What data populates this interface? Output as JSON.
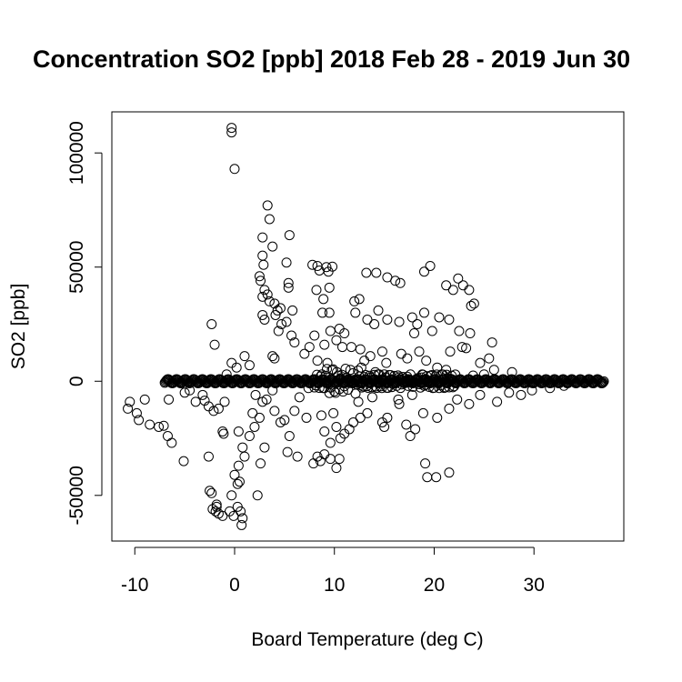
{
  "chart_data": {
    "type": "scatter",
    "title": "Concentration SO2 [ppb] 2018 Feb 28 - 2019 Jun 30",
    "xlabel": "Board Temperature (deg C)",
    "ylabel": "SO2 [ppb]",
    "xlim": [
      -12.3,
      39
    ],
    "ylim": [
      -70000,
      118000
    ],
    "xticks": [
      -10,
      0,
      10,
      20,
      30
    ],
    "yticks": [
      -50000,
      0,
      50000,
      100000
    ],
    "xtick_labels": [
      "-10",
      "0",
      "10",
      "20",
      "30"
    ],
    "ytick_labels": [
      "-50000",
      "0",
      "50000",
      "100000"
    ],
    "grid": false,
    "marker": "open-circle",
    "band": {
      "x_start": -7,
      "x_end": 37,
      "y": 0
    },
    "points": [
      [
        -0.3,
        111000
      ],
      [
        -0.3,
        109000
      ],
      [
        0,
        93000
      ],
      [
        3.3,
        77000
      ],
      [
        3.5,
        71000
      ],
      [
        2.8,
        63000
      ],
      [
        5.5,
        64000
      ],
      [
        3.8,
        59000
      ],
      [
        2.8,
        55000
      ],
      [
        2.9,
        51000
      ],
      [
        5.2,
        52000
      ],
      [
        7.8,
        51000
      ],
      [
        8.3,
        50500
      ],
      [
        9.2,
        50000
      ],
      [
        9.8,
        50200
      ],
      [
        8.5,
        48500
      ],
      [
        9.4,
        48000
      ],
      [
        13.2,
        47500
      ],
      [
        14.2,
        47500
      ],
      [
        15.3,
        45500
      ],
      [
        16.1,
        44000
      ],
      [
        16.6,
        43000
      ],
      [
        19.0,
        48000
      ],
      [
        19.6,
        50500
      ],
      [
        22.4,
        45000
      ],
      [
        22.9,
        42000
      ],
      [
        21.2,
        42000
      ],
      [
        23.5,
        40000
      ],
      [
        21.9,
        40000
      ],
      [
        24.0,
        34000
      ],
      [
        23.7,
        33000
      ],
      [
        2.5,
        46000
      ],
      [
        2.6,
        44000
      ],
      [
        3.0,
        40000
      ],
      [
        3.3,
        38000
      ],
      [
        2.8,
        37000
      ],
      [
        3.5,
        35000
      ],
      [
        4.0,
        34000
      ],
      [
        4.3,
        31000
      ],
      [
        4.6,
        32000
      ],
      [
        4.1,
        29000
      ],
      [
        2.8,
        29000
      ],
      [
        3.0,
        27000
      ],
      [
        5.8,
        31000
      ],
      [
        5.4,
        43000
      ],
      [
        5.4,
        41000
      ],
      [
        4.7,
        25000
      ],
      [
        5.2,
        26000
      ],
      [
        4.4,
        22000
      ],
      [
        5.7,
        20000
      ],
      [
        6.0,
        17000
      ],
      [
        3.8,
        11000
      ],
      [
        4.0,
        10000
      ],
      [
        8.2,
        40000
      ],
      [
        8.9,
        36000
      ],
      [
        9.5,
        41000
      ],
      [
        8.8,
        30000
      ],
      [
        9.5,
        30000
      ],
      [
        12.0,
        35000
      ],
      [
        12.5,
        36000
      ],
      [
        12.1,
        30000
      ],
      [
        13.3,
        27000
      ],
      [
        14.4,
        31000
      ],
      [
        14.0,
        25000
      ],
      [
        15.3,
        27000
      ],
      [
        16.5,
        26000
      ],
      [
        17.8,
        28000
      ],
      [
        18.3,
        25000
      ],
      [
        19.0,
        30000
      ],
      [
        20.5,
        28000
      ],
      [
        21.5,
        27000
      ],
      [
        22.5,
        22000
      ],
      [
        23.6,
        21000
      ],
      [
        19.8,
        22000
      ],
      [
        18.0,
        21000
      ],
      [
        10.5,
        23000
      ],
      [
        11.0,
        21000
      ],
      [
        9.6,
        22000
      ],
      [
        10.2,
        18000
      ],
      [
        9.0,
        16000
      ],
      [
        10.8,
        15000
      ],
      [
        11.7,
        15000
      ],
      [
        12.6,
        14000
      ],
      [
        8.0,
        20000
      ],
      [
        7.5,
        15000
      ],
      [
        7.0,
        12000
      ],
      [
        8.3,
        9000
      ],
      [
        9.3,
        8000
      ],
      [
        13.0,
        9000
      ],
      [
        13.6,
        11000
      ],
      [
        14.8,
        13000
      ],
      [
        15.2,
        8000
      ],
      [
        16.7,
        12000
      ],
      [
        17.3,
        10000
      ],
      [
        18.5,
        13000
      ],
      [
        19.2,
        9000
      ],
      [
        20.3,
        6000
      ],
      [
        21.6,
        13000
      ],
      [
        22.8,
        15000
      ],
      [
        23.2,
        14500
      ],
      [
        25.8,
        17000
      ],
      [
        25.5,
        10000
      ],
      [
        24.6,
        8000
      ],
      [
        26.0,
        5000
      ],
      [
        27.8,
        4000
      ],
      [
        25.0,
        3000
      ],
      [
        -0.3,
        8000
      ],
      [
        0.2,
        6000
      ],
      [
        -0.8,
        3000
      ],
      [
        -2.3,
        25000
      ],
      [
        -2.0,
        16000
      ],
      [
        1.0,
        11000
      ],
      [
        1.5,
        7000
      ],
      [
        -10.5,
        -9000
      ],
      [
        -10.7,
        -12000
      ],
      [
        -9.8,
        -14000
      ],
      [
        -9.6,
        -17000
      ],
      [
        -9.0,
        -8000
      ],
      [
        -8.5,
        -19000
      ],
      [
        -7.6,
        -20000
      ],
      [
        -7.1,
        -19500
      ],
      [
        -6.7,
        -24000
      ],
      [
        -6.3,
        -27000
      ],
      [
        -6.6,
        -8000
      ],
      [
        -5.1,
        -35000
      ],
      [
        -5.0,
        -5000
      ],
      [
        -3.9,
        -9000
      ],
      [
        -3.2,
        -6000
      ],
      [
        -2.6,
        -11000
      ],
      [
        -2.1,
        -13000
      ],
      [
        -1.6,
        -12000
      ],
      [
        -1.0,
        -9000
      ],
      [
        -1.2,
        -22000
      ],
      [
        -1.1,
        -23000
      ],
      [
        -2.6,
        -33000
      ],
      [
        -2.5,
        -48000
      ],
      [
        -2.3,
        -49000
      ],
      [
        -1.8,
        -54000
      ],
      [
        -2.2,
        -56000
      ],
      [
        -1.9,
        -57000
      ],
      [
        -1.6,
        -58000
      ],
      [
        -1.8,
        -55000
      ],
      [
        -1.2,
        -59000
      ],
      [
        -0.5,
        -57000
      ],
      [
        -0.1,
        -59000
      ],
      [
        0.3,
        -55000
      ],
      [
        0.6,
        -57000
      ],
      [
        0.8,
        -60000
      ],
      [
        0.7,
        -63000
      ],
      [
        -0.3,
        -50000
      ],
      [
        0.3,
        -45000
      ],
      [
        0.5,
        -44000
      ],
      [
        0.0,
        -41000
      ],
      [
        0.4,
        -37000
      ],
      [
        1.0,
        -33000
      ],
      [
        0.8,
        -29000
      ],
      [
        1.5,
        -24000
      ],
      [
        0.4,
        -22000
      ],
      [
        2.0,
        -20000
      ],
      [
        2.5,
        -16000
      ],
      [
        1.8,
        -14000
      ],
      [
        2.3,
        -50000
      ],
      [
        2.6,
        -36000
      ],
      [
        3.0,
        -29000
      ],
      [
        4.0,
        -13000
      ],
      [
        5.0,
        -17000
      ],
      [
        5.5,
        -24000
      ],
      [
        5.3,
        -31000
      ],
      [
        6.3,
        -33000
      ],
      [
        4.6,
        -18000
      ],
      [
        6.0,
        -13000
      ],
      [
        7.2,
        -16000
      ],
      [
        7.9,
        -36000
      ],
      [
        8.3,
        -33000
      ],
      [
        8.6,
        -35000
      ],
      [
        9.0,
        -32000
      ],
      [
        9.6,
        -34000
      ],
      [
        10.2,
        -38000
      ],
      [
        10.5,
        -34000
      ],
      [
        9.6,
        -27000
      ],
      [
        10.6,
        -25000
      ],
      [
        11.0,
        -23000
      ],
      [
        10.2,
        -20000
      ],
      [
        11.5,
        -21000
      ],
      [
        9.0,
        -22000
      ],
      [
        8.7,
        -15000
      ],
      [
        9.9,
        -14000
      ],
      [
        11.9,
        -18000
      ],
      [
        12.6,
        -16000
      ],
      [
        13.3,
        -14000
      ],
      [
        14.8,
        -18000
      ],
      [
        15.3,
        -16000
      ],
      [
        15.0,
        -20000
      ],
      [
        16.4,
        -8000
      ],
      [
        17.2,
        -19000
      ],
      [
        17.6,
        -24000
      ],
      [
        18.1,
        -21000
      ],
      [
        18.9,
        -14000
      ],
      [
        19.1,
        -36000
      ],
      [
        19.3,
        -42000
      ],
      [
        20.2,
        -42000
      ],
      [
        21.5,
        -40000
      ],
      [
        20.3,
        -16000
      ],
      [
        21.5,
        -12000
      ],
      [
        22.3,
        -8000
      ],
      [
        23.5,
        -10000
      ],
      [
        24.6,
        -6000
      ],
      [
        26.3,
        -9000
      ],
      [
        27.5,
        -5000
      ],
      [
        28.7,
        -6000
      ],
      [
        29.8,
        -4000
      ],
      [
        31.6,
        -3000
      ],
      [
        33.0,
        -2000
      ],
      [
        16.5,
        -10000
      ],
      [
        17.8,
        -6000
      ],
      [
        13.8,
        -7000
      ],
      [
        12.4,
        -9000
      ],
      [
        6.5,
        -7000
      ],
      [
        7.4,
        -3000
      ],
      [
        3.8,
        -4000
      ],
      [
        3.2,
        -8000
      ],
      [
        2.1,
        -6000
      ],
      [
        2.8,
        -9000
      ],
      [
        11.6,
        5000
      ],
      [
        12.7,
        6000
      ],
      [
        14.1,
        4000
      ],
      [
        17.3,
        2000
      ],
      [
        18.8,
        3000
      ],
      [
        21.2,
        5000
      ],
      [
        23.9,
        2500
      ],
      [
        -3.0,
        -8500
      ],
      [
        -4.5,
        -4000
      ]
    ]
  }
}
